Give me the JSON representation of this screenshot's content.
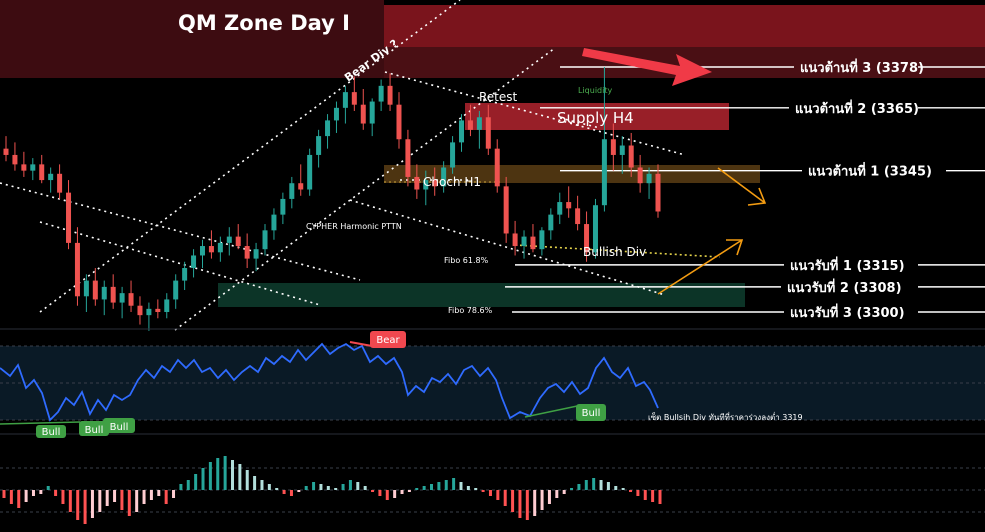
{
  "colors": {
    "background": "#000000",
    "candle_up": "#26a69a",
    "candle_down": "#ef5350",
    "zone_top": "#7a0f17",
    "zone_top_dark": "#3a0c10",
    "supply_h4": "#b3252f",
    "choch_zone": "#5a3d14",
    "demand_zone": "#0e3a2c",
    "white_line": "#ffffff",
    "rsi_line": "#2f6bff",
    "bull_badge": "#3fa044",
    "bear_badge": "#f0484f",
    "arrow_orange": "#f39c12",
    "arrow_red": "#f03a47",
    "liquidity_green": "#4caf50"
  },
  "chart_data": [
    {
      "type": "candlestick",
      "title": "QM Zone Day I",
      "y_scale_note": "price",
      "levels": [
        {
          "label": "แนวต้านที่ 3 (3378)",
          "price": 3378
        },
        {
          "label": "แนวต้านที่ 2 (3365)",
          "price": 3365
        },
        {
          "label": "แนวต้านที่ 1 (3345)",
          "price": 3345
        },
        {
          "label": "แนวรับที่ 1 (3315)",
          "price": 3315
        },
        {
          "label": "แนวรับที่ 2 (3308)",
          "price": 3308
        },
        {
          "label": "แนวรับที่ 3 (3300)",
          "price": 3300
        }
      ],
      "annotations": {
        "bear_div": "Bear Div ?",
        "retest": "Retest",
        "supply": "Supply H4",
        "liquidity": "Liquidity",
        "choch": "Choch H1",
        "cypher": "CYPHER Harmonic PTTN",
        "bullish_div": "Bullish Div",
        "fibo_618": "Fibo 61.8%",
        "fibo_786": "Fibo 78.6%"
      },
      "candles": [
        [
          3352,
          3356,
          3348,
          3350
        ],
        [
          3350,
          3354,
          3345,
          3347
        ],
        [
          3347,
          3351,
          3343,
          3345
        ],
        [
          3345,
          3349,
          3342,
          3347
        ],
        [
          3347,
          3350,
          3341,
          3342
        ],
        [
          3342,
          3346,
          3338,
          3344
        ],
        [
          3344,
          3347,
          3336,
          3338
        ],
        [
          3338,
          3342,
          3320,
          3322
        ],
        [
          3322,
          3327,
          3302,
          3305
        ],
        [
          3305,
          3312,
          3300,
          3310
        ],
        [
          3310,
          3314,
          3302,
          3304
        ],
        [
          3304,
          3310,
          3299,
          3308
        ],
        [
          3308,
          3312,
          3301,
          3303
        ],
        [
          3303,
          3308,
          3298,
          3306
        ],
        [
          3306,
          3310,
          3300,
          3302
        ],
        [
          3302,
          3305,
          3296,
          3299
        ],
        [
          3299,
          3303,
          3294,
          3301
        ],
        [
          3301,
          3304,
          3298,
          3300
        ],
        [
          3300,
          3306,
          3298,
          3304
        ],
        [
          3304,
          3312,
          3301,
          3310
        ],
        [
          3310,
          3316,
          3307,
          3314
        ],
        [
          3314,
          3320,
          3311,
          3318
        ],
        [
          3318,
          3323,
          3314,
          3321
        ],
        [
          3321,
          3326,
          3317,
          3319
        ],
        [
          3319,
          3324,
          3316,
          3322
        ],
        [
          3322,
          3327,
          3318,
          3324
        ],
        [
          3324,
          3328,
          3320,
          3321
        ],
        [
          3321,
          3325,
          3314,
          3317
        ],
        [
          3317,
          3322,
          3313,
          3320
        ],
        [
          3320,
          3328,
          3318,
          3326
        ],
        [
          3326,
          3333,
          3323,
          3331
        ],
        [
          3331,
          3338,
          3328,
          3336
        ],
        [
          3336,
          3343,
          3333,
          3341
        ],
        [
          3341,
          3347,
          3337,
          3339
        ],
        [
          3339,
          3352,
          3337,
          3350
        ],
        [
          3350,
          3358,
          3346,
          3356
        ],
        [
          3356,
          3363,
          3352,
          3361
        ],
        [
          3361,
          3367,
          3357,
          3365
        ],
        [
          3365,
          3372,
          3360,
          3370
        ],
        [
          3370,
          3375,
          3364,
          3366
        ],
        [
          3366,
          3371,
          3358,
          3360
        ],
        [
          3360,
          3368,
          3356,
          3367
        ],
        [
          3367,
          3374,
          3364,
          3372
        ],
        [
          3372,
          3376,
          3364,
          3366
        ],
        [
          3366,
          3370,
          3352,
          3355
        ],
        [
          3355,
          3358,
          3340,
          3343
        ],
        [
          3343,
          3347,
          3336,
          3339
        ],
        [
          3339,
          3345,
          3334,
          3342
        ],
        [
          3342,
          3346,
          3337,
          3340
        ],
        [
          3340,
          3348,
          3338,
          3346
        ],
        [
          3346,
          3356,
          3344,
          3354
        ],
        [
          3354,
          3363,
          3351,
          3361
        ],
        [
          3361,
          3366,
          3356,
          3358
        ],
        [
          3358,
          3364,
          3352,
          3362
        ],
        [
          3362,
          3366,
          3350,
          3352
        ],
        [
          3352,
          3355,
          3338,
          3340
        ],
        [
          3340,
          3343,
          3322,
          3325
        ],
        [
          3325,
          3329,
          3318,
          3321
        ],
        [
          3321,
          3326,
          3317,
          3324
        ],
        [
          3324,
          3328,
          3319,
          3320
        ],
        [
          3320,
          3327,
          3318,
          3326
        ],
        [
          3326,
          3333,
          3323,
          3331
        ],
        [
          3331,
          3338,
          3328,
          3335
        ],
        [
          3335,
          3340,
          3330,
          3333
        ],
        [
          3333,
          3337,
          3326,
          3328
        ],
        [
          3328,
          3332,
          3316,
          3319
        ],
        [
          3319,
          3336,
          3317,
          3334
        ],
        [
          3334,
          3378,
          3332,
          3355
        ],
        [
          3355,
          3360,
          3345,
          3350
        ],
        [
          3350,
          3356,
          3344,
          3353
        ],
        [
          3353,
          3357,
          3343,
          3346
        ],
        [
          3346,
          3350,
          3338,
          3341
        ],
        [
          3341,
          3346,
          3336,
          3344
        ],
        [
          3344,
          3347,
          3330,
          3332
        ]
      ]
    },
    {
      "type": "line",
      "title": "RSI",
      "badges": {
        "bear": "Bear",
        "bull_1": "Bull",
        "bull_2": "Bull",
        "bull_3": "Bull",
        "bull_4": "Bull"
      },
      "note": "เซ็ต Bullsih Div ทันทีที่ราคาร่วงลงต่ำ 3319"
    },
    {
      "type": "bar",
      "title": "Momentum histogram"
    }
  ]
}
